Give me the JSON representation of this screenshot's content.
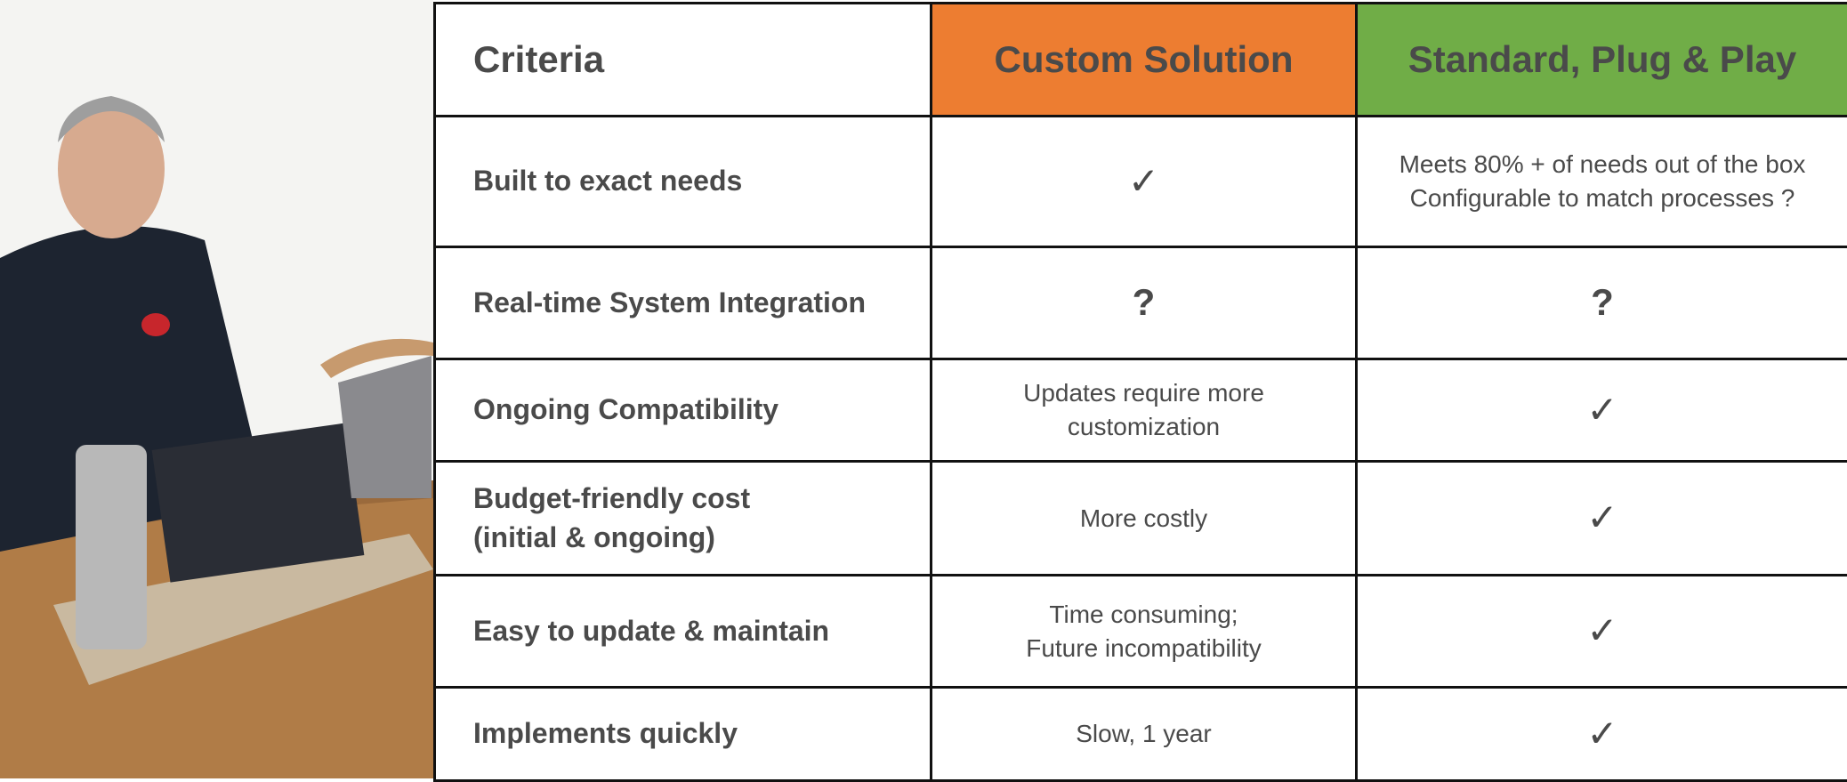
{
  "table": {
    "header": [
      "Criteria",
      "Custom Solution",
      "Standard, Plug & Play"
    ],
    "rows": [
      [
        "Built to exact needs",
        "✓",
        "Meets 80% + of needs out of the box\nConfigurable to match processes ?"
      ],
      [
        "Real-time System Integration",
        "?",
        "?"
      ],
      [
        "Ongoing Compatibility",
        "Updates require more\ncustomization",
        "✓"
      ],
      [
        "Budget-friendly cost\n(initial & ongoing)",
        "More costly",
        "✓"
      ],
      [
        "Easy to update & maintain",
        "Time consuming;\nFuture incompatibility",
        "✓"
      ],
      [
        "Implements quickly",
        "Slow, 1 year",
        "✓"
      ]
    ]
  }
}
